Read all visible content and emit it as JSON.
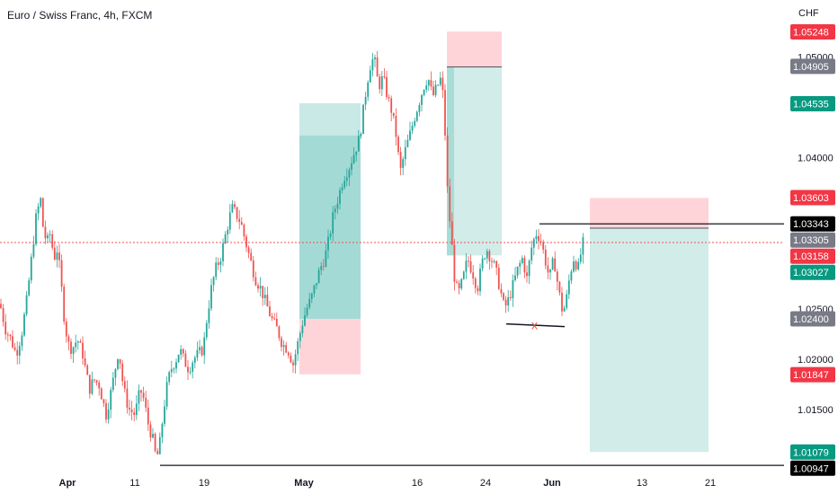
{
  "header": {
    "title": "Euro / Swiss Franc, 4h, FXCM"
  },
  "colors": {
    "up": "#26a69a",
    "down": "#ef5350",
    "wick": "#131722",
    "target_zone": "#b2dfdb",
    "target_zone_dark": "#80cbc4",
    "stop_zone": "#ffcdd2",
    "current_line": "#ef5350",
    "level_line": "#131722",
    "tag_red": "#f23645",
    "tag_green": "#089981",
    "tag_gray": "#787b86",
    "tag_black": "#000000"
  },
  "chart_data": {
    "type": "candlestick",
    "instrument": "Euro / Swiss Franc",
    "timeframe": "4h",
    "source": "FXCM",
    "currency_label": "CHF",
    "ylim": [
      1.0093,
      1.0535
    ],
    "y_ticks": [
      "1.05000",
      "1.04000",
      "1.02500",
      "1.02000",
      "1.01500"
    ],
    "x_ticks": [
      "Apr",
      "11",
      "19",
      "May",
      "16",
      "24",
      "Jun",
      "13",
      "21"
    ],
    "price_tags": [
      {
        "label": "1.05248",
        "value": 1.05248,
        "color": "red"
      },
      {
        "label": "1.04905",
        "value": 1.04905,
        "color": "gray"
      },
      {
        "label": "1.04535",
        "value": 1.04535,
        "color": "green"
      },
      {
        "label": "1.03603",
        "value": 1.03603,
        "color": "red"
      },
      {
        "label": "1.03343",
        "value": 1.03343,
        "color": "black"
      },
      {
        "label": "1.03305",
        "value": 1.03305,
        "color": "gray"
      },
      {
        "label": "1.03158",
        "value": 1.03158,
        "color": "red"
      },
      {
        "label": "1.03027",
        "value": 1.03027,
        "color": "green"
      },
      {
        "label": "1.02400",
        "value": 1.024,
        "color": "gray"
      },
      {
        "label": "1.01847",
        "value": 1.01847,
        "color": "red"
      },
      {
        "label": "1.01079",
        "value": 1.01079,
        "color": "green"
      },
      {
        "label": "1.00947",
        "value": 1.00947,
        "color": "black"
      }
    ],
    "current_price": 1.03158,
    "horizontal_levels": [
      1.03343,
      1.00947
    ],
    "support_line_value": 1.0235,
    "marker": "x",
    "position_boxes": [
      {
        "kind": "long",
        "target_top": 1.0454,
        "target_inner": 1.0422,
        "entry": 1.024,
        "stop": 1.0185
      },
      {
        "kind": "short",
        "stop": 1.0525,
        "entry": 1.049,
        "target": 1.0303
      },
      {
        "kind": "short",
        "stop": 1.036,
        "entry": 1.033,
        "target": 1.0108
      }
    ],
    "price_path": [
      [
        0,
        1.0255
      ],
      [
        6,
        1.023
      ],
      [
        12,
        1.022
      ],
      [
        18,
        1.0205
      ],
      [
        24,
        1.0225
      ],
      [
        30,
        1.026
      ],
      [
        35,
        1.03
      ],
      [
        40,
        1.034
      ],
      [
        45,
        1.036
      ],
      [
        48,
        1.033
      ],
      [
        52,
        1.0315
      ],
      [
        56,
        1.0325
      ],
      [
        60,
        1.03
      ],
      [
        64,
        1.031
      ],
      [
        68,
        1.0275
      ],
      [
        72,
        1.0235
      ],
      [
        76,
        1.0215
      ],
      [
        80,
        1.021
      ],
      [
        86,
        1.022
      ],
      [
        92,
        1.0205
      ],
      [
        96,
        1.0185
      ],
      [
        100,
        1.017
      ],
      [
        104,
        1.018
      ],
      [
        110,
        1.0175
      ],
      [
        114,
        1.016
      ],
      [
        118,
        1.0145
      ],
      [
        124,
        1.017
      ],
      [
        128,
        1.019
      ],
      [
        132,
        1.021
      ],
      [
        136,
        1.018
      ],
      [
        140,
        1.016
      ],
      [
        144,
        1.015
      ],
      [
        150,
        1.0145
      ],
      [
        156,
        1.017
      ],
      [
        160,
        1.016
      ],
      [
        165,
        1.0135
      ],
      [
        170,
        1.012
      ],
      [
        174,
        1.01
      ],
      [
        178,
        1.0118
      ],
      [
        182,
        1.015
      ],
      [
        186,
        1.0175
      ],
      [
        190,
        1.019
      ],
      [
        196,
        1.02
      ],
      [
        200,
        1.021
      ],
      [
        205,
        1.0198
      ],
      [
        210,
        1.019
      ],
      [
        215,
        1.02
      ],
      [
        220,
        1.0205
      ],
      [
        226,
        1.021
      ],
      [
        230,
        1.024
      ],
      [
        235,
        1.027
      ],
      [
        240,
        1.029
      ],
      [
        245,
        1.03
      ],
      [
        250,
        1.032
      ],
      [
        255,
        1.034
      ],
      [
        258,
        1.035
      ],
      [
        262,
        1.0345
      ],
      [
        268,
        1.0335
      ],
      [
        272,
        1.032
      ],
      [
        278,
        1.03
      ],
      [
        284,
        1.028
      ],
      [
        290,
        1.027
      ],
      [
        296,
        1.0255
      ],
      [
        302,
        1.024
      ],
      [
        308,
        1.023
      ],
      [
        314,
        1.0215
      ],
      [
        320,
        1.021
      ],
      [
        326,
        1.0195
      ],
      [
        331,
        1.0215
      ],
      [
        336,
        1.0235
      ],
      [
        341,
        1.025
      ],
      [
        346,
        1.026
      ],
      [
        351,
        1.0275
      ],
      [
        356,
        1.029
      ],
      [
        361,
        1.03
      ],
      [
        366,
        1.032
      ],
      [
        371,
        1.0345
      ],
      [
        376,
        1.036
      ],
      [
        382,
        1.038
      ],
      [
        388,
        1.039
      ],
      [
        394,
        1.0405
      ],
      [
        400,
        1.042
      ],
      [
        406,
        1.046
      ],
      [
        411,
        1.049
      ],
      [
        416,
        1.05
      ],
      [
        421,
        1.047
      ],
      [
        426,
        1.048
      ],
      [
        431,
        1.046
      ],
      [
        436,
        1.0445
      ],
      [
        441,
        1.042
      ],
      [
        445,
        1.0385
      ],
      [
        450,
        1.0405
      ],
      [
        455,
        1.042
      ],
      [
        461,
        1.044
      ],
      [
        466,
        1.0455
      ],
      [
        471,
        1.047
      ],
      [
        476,
        1.048
      ],
      [
        481,
        1.046
      ],
      [
        486,
        1.047
      ],
      [
        491,
        1.048
      ],
      [
        494,
        1.0445
      ],
      [
        498,
        1.036
      ],
      [
        502,
        1.032
      ],
      [
        506,
        1.0275
      ],
      [
        510,
        1.0265
      ],
      [
        515,
        1.028
      ],
      [
        520,
        1.03
      ],
      [
        526,
        1.0285
      ],
      [
        531,
        1.027
      ],
      [
        536,
        1.0295
      ],
      [
        541,
        1.031
      ],
      [
        546,
        1.03
      ],
      [
        551,
        1.029
      ],
      [
        556,
        1.027
      ],
      [
        561,
        1.025
      ],
      [
        566,
        1.026
      ],
      [
        571,
        1.0275
      ],
      [
        576,
        1.029
      ],
      [
        581,
        1.03
      ],
      [
        586,
        1.028
      ],
      [
        591,
        1.031
      ],
      [
        596,
        1.0325
      ],
      [
        601,
        1.032
      ],
      [
        606,
        1.03
      ],
      [
        611,
        1.028
      ],
      [
        616,
        1.03
      ],
      [
        621,
        1.027
      ],
      [
        626,
        1.0245
      ],
      [
        630,
        1.026
      ],
      [
        634,
        1.0285
      ],
      [
        638,
        1.03
      ],
      [
        643,
        1.029
      ],
      [
        648,
        1.0315
      ],
      [
        651,
        1.0316
      ]
    ]
  }
}
